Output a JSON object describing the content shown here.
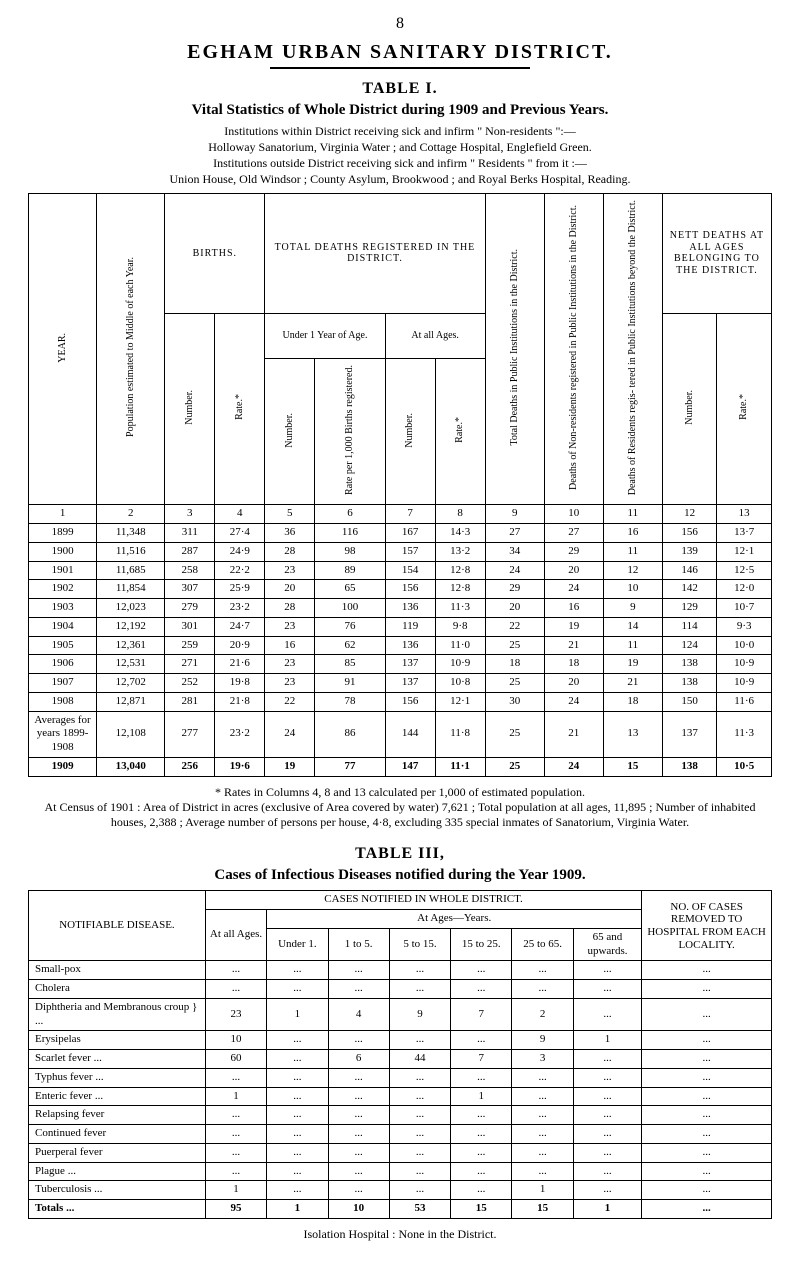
{
  "page_number": "8",
  "main_title": "EGHAM  URBAN  SANITARY  DISTRICT.",
  "table1": {
    "label": "TABLE I.",
    "subtitle": "Vital Statistics of Whole District during 1909 and Previous Years.",
    "note_a": "Institutions within District receiving sick and infirm \" Non-residents \":—",
    "note_b": "Holloway Sanatorium, Virginia Water ;  and Cottage Hospital, Englefield Green.",
    "note_c": "Institutions outside District receiving sick and infirm \" Residents \" from it :—",
    "note_d": "Union House, Old Windsor ; County Asylum, Brookwood ; and Royal Berks Hospital, Reading.",
    "headers": {
      "year": "YEAR.",
      "pop": "Population estimated to Middle of each Year.",
      "births": "BIRTHS.",
      "deaths_registered": "TOTAL DEATHS REGISTERED IN THE DISTRICT.",
      "under1": "Under 1 Year of Age.",
      "all_ages": "At all Ages.",
      "tot_pub": "Total Deaths in Public Institutions in the District.",
      "non_res": "Deaths of Non-residents registered in Public Institutions in the District.",
      "res_out": "Deaths of Residents regis- tered in Public Institutions beyond the District.",
      "nett": "NETT DEATHS AT ALL AGES BELONGING TO THE DISTRICT.",
      "number": "Number.",
      "rate": "Rate.*",
      "rate_per": "Rate per 1,000 Births registered."
    },
    "col_nums": [
      "1",
      "2",
      "3",
      "4",
      "5",
      "6",
      "7",
      "8",
      "9",
      "10",
      "11",
      "12",
      "13"
    ],
    "rows": [
      [
        "1899",
        "11,348",
        "311",
        "27·4",
        "36",
        "116",
        "167",
        "14·3",
        "27",
        "27",
        "16",
        "156",
        "13·7"
      ],
      [
        "1900",
        "11,516",
        "287",
        "24·9",
        "28",
        "98",
        "157",
        "13·2",
        "34",
        "29",
        "11",
        "139",
        "12·1"
      ],
      [
        "1901",
        "11,685",
        "258",
        "22·2",
        "23",
        "89",
        "154",
        "12·8",
        "24",
        "20",
        "12",
        "146",
        "12·5"
      ],
      [
        "1902",
        "11,854",
        "307",
        "25·9",
        "20",
        "65",
        "156",
        "12·8",
        "29",
        "24",
        "10",
        "142",
        "12·0"
      ],
      [
        "1903",
        "12,023",
        "279",
        "23·2",
        "28",
        "100",
        "136",
        "11·3",
        "20",
        "16",
        "9",
        "129",
        "10·7"
      ],
      [
        "1904",
        "12,192",
        "301",
        "24·7",
        "23",
        "76",
        "119",
        "9·8",
        "22",
        "19",
        "14",
        "114",
        "9·3"
      ],
      [
        "1905",
        "12,361",
        "259",
        "20·9",
        "16",
        "62",
        "136",
        "11·0",
        "25",
        "21",
        "11",
        "124",
        "10·0"
      ],
      [
        "1906",
        "12,531",
        "271",
        "21·6",
        "23",
        "85",
        "137",
        "10·9",
        "18",
        "18",
        "19",
        "138",
        "10·9"
      ],
      [
        "1907",
        "12,702",
        "252",
        "19·8",
        "23",
        "91",
        "137",
        "10·8",
        "25",
        "20",
        "21",
        "138",
        "10·9"
      ],
      [
        "1908",
        "12,871",
        "281",
        "21·8",
        "22",
        "78",
        "156",
        "12·1",
        "30",
        "24",
        "18",
        "150",
        "11·6"
      ]
    ],
    "avg_label": "Averages for years 1899-1908",
    "avg_row": [
      "12,108",
      "277",
      "23·2",
      "24",
      "86",
      "144",
      "11·8",
      "25",
      "21",
      "13",
      "137",
      "11·3"
    ],
    "final_row": [
      "1909",
      "13,040",
      "256",
      "19·6",
      "19",
      "77",
      "147",
      "11·1",
      "25",
      "24",
      "15",
      "138",
      "10·5"
    ],
    "footnote": "* Rates in Columns 4, 8 and 13 calculated per 1,000 of estimated population.\nAt Census of 1901 :  Area of District in acres (exclusive of Area covered by water) 7,621 ;  Total population at all ages, 11,895 ; Number of inhabited houses, 2,388 ; Average number of persons per house, 4·8, excluding 335 special inmates of Sanatorium, Virginia Water."
  },
  "table2": {
    "label": "TABLE III,",
    "subtitle": "Cases of Infectious Diseases notified during the Year 1909.",
    "headers": {
      "disease": "NOTIFIABLE DISEASE.",
      "cases_whole": "CASES NOTIFIED IN WHOLE DISTRICT.",
      "at_all": "At all Ages.",
      "ages_years": "At Ages—Years.",
      "u1": "Under 1.",
      "b1": "1 to 5.",
      "b2": "5 to 15.",
      "b3": "15 to 25.",
      "b4": "25 to 65.",
      "b5": "65 and upwards.",
      "locality": "NO. OF CASES REMOVED TO HOSPITAL FROM EACH LOCALITY."
    },
    "rows": [
      {
        "name": "Small-pox",
        "c": [
          "...",
          "...",
          "...",
          "...",
          "...",
          "...",
          "...",
          "..."
        ]
      },
      {
        "name": "Cholera",
        "c": [
          "...",
          "...",
          "...",
          "...",
          "...",
          "...",
          "...",
          "..."
        ]
      },
      {
        "name": "Diphtheria and Membranous croup } ...",
        "c": [
          "23",
          "1",
          "4",
          "9",
          "7",
          "2",
          "...",
          "..."
        ]
      },
      {
        "name": "Erysipelas",
        "c": [
          "10",
          "...",
          "...",
          "...",
          "...",
          "9",
          "1",
          "..."
        ]
      },
      {
        "name": "Scarlet fever  ...",
        "c": [
          "60",
          "...",
          "6",
          "44",
          "7",
          "3",
          "...",
          "..."
        ]
      },
      {
        "name": "Typhus fever ...",
        "c": [
          "...",
          "...",
          "...",
          "...",
          "...",
          "...",
          "...",
          "..."
        ]
      },
      {
        "name": "Enteric fever ...",
        "c": [
          "1",
          "...",
          "...",
          "...",
          "1",
          "...",
          "...",
          "..."
        ]
      },
      {
        "name": "Relapsing fever",
        "c": [
          "...",
          "...",
          "...",
          "...",
          "...",
          "...",
          "...",
          "..."
        ]
      },
      {
        "name": "Continued fever",
        "c": [
          "...",
          "...",
          "...",
          "...",
          "...",
          "...",
          "...",
          "..."
        ]
      },
      {
        "name": "Puerperal fever",
        "c": [
          "...",
          "...",
          "...",
          "...",
          "...",
          "...",
          "...",
          "..."
        ]
      },
      {
        "name": "Plague ...",
        "c": [
          "...",
          "...",
          "...",
          "...",
          "...",
          "...",
          "...",
          "..."
        ]
      },
      {
        "name": "Tuberculosis ...",
        "c": [
          "1",
          "...",
          "...",
          "...",
          "...",
          "1",
          "...",
          "..."
        ]
      }
    ],
    "totals_label": "Totals   ...",
    "totals": [
      "95",
      "1",
      "10",
      "53",
      "15",
      "15",
      "1",
      "..."
    ],
    "footer": "Isolation Hospital :  None in the District."
  }
}
